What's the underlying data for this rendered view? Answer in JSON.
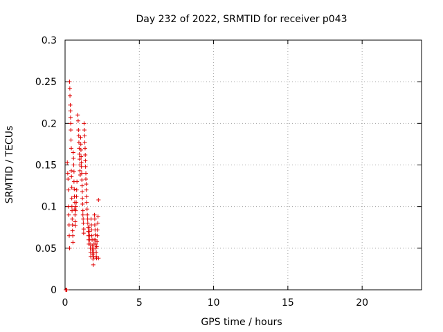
{
  "chart_data": {
    "type": "scatter",
    "title": "Day 232 of 2022, SRMTID for receiver p043",
    "xlabel": "GPS time / hours",
    "ylabel": "SRMTID / TECUs",
    "xlim": [
      0,
      24
    ],
    "ylim": [
      0,
      0.3
    ],
    "xticks": [
      0,
      5,
      10,
      15,
      20
    ],
    "xtick_labels": [
      "0",
      "5",
      "10",
      "15",
      "20"
    ],
    "yticks": [
      0,
      0.05,
      0.1,
      0.15,
      0.2,
      0.25,
      0.3
    ],
    "ytick_labels": [
      "0",
      "0.05",
      "0.1",
      "0.15",
      "0.2",
      "0.25",
      "0.3"
    ],
    "grid": true,
    "marker": "+",
    "series": [
      {
        "name": "p043",
        "color": "#e00000",
        "points": [
          [
            0.05,
            0.0
          ],
          [
            0.1,
            0.0
          ],
          [
            0.12,
            0.0
          ],
          [
            0.15,
            0.153
          ],
          [
            0.18,
            0.14
          ],
          [
            0.2,
            0.133
          ],
          [
            0.22,
            0.12
          ],
          [
            0.23,
            0.1
          ],
          [
            0.25,
            0.09
          ],
          [
            0.27,
            0.078
          ],
          [
            0.28,
            0.065
          ],
          [
            0.3,
            0.05
          ],
          [
            0.3,
            0.25
          ],
          [
            0.32,
            0.242
          ],
          [
            0.33,
            0.233
          ],
          [
            0.35,
            0.222
          ],
          [
            0.36,
            0.215
          ],
          [
            0.37,
            0.207
          ],
          [
            0.38,
            0.2
          ],
          [
            0.39,
            0.192
          ],
          [
            0.4,
            0.18
          ],
          [
            0.42,
            0.17
          ],
          [
            0.42,
            0.143
          ],
          [
            0.43,
            0.136
          ],
          [
            0.45,
            0.123
          ],
          [
            0.45,
            0.11
          ],
          [
            0.46,
            0.1
          ],
          [
            0.47,
            0.095
          ],
          [
            0.48,
            0.085
          ],
          [
            0.5,
            0.078
          ],
          [
            0.5,
            0.071
          ],
          [
            0.52,
            0.065
          ],
          [
            0.53,
            0.057
          ],
          [
            0.55,
            0.165
          ],
          [
            0.57,
            0.158
          ],
          [
            0.58,
            0.15
          ],
          [
            0.6,
            0.142
          ],
          [
            0.6,
            0.13
          ],
          [
            0.62,
            0.121
          ],
          [
            0.63,
            0.112
          ],
          [
            0.65,
            0.105
          ],
          [
            0.65,
            0.097
          ],
          [
            0.67,
            0.09
          ],
          [
            0.68,
            0.082
          ],
          [
            0.7,
            0.077
          ],
          [
            0.72,
            0.095
          ],
          [
            0.73,
            0.1
          ],
          [
            0.75,
            0.105
          ],
          [
            0.77,
            0.112
          ],
          [
            0.78,
            0.12
          ],
          [
            0.8,
            0.13
          ],
          [
            0.85,
            0.21
          ],
          [
            0.88,
            0.203
          ],
          [
            0.9,
            0.192
          ],
          [
            0.92,
            0.185
          ],
          [
            0.93,
            0.177
          ],
          [
            0.95,
            0.17
          ],
          [
            0.96,
            0.163
          ],
          [
            0.98,
            0.157
          ],
          [
            1.0,
            0.15
          ],
          [
            1.0,
            0.143
          ],
          [
            1.02,
            0.138
          ],
          [
            1.05,
            0.183
          ],
          [
            1.06,
            0.175
          ],
          [
            1.07,
            0.168
          ],
          [
            1.08,
            0.16
          ],
          [
            1.1,
            0.153
          ],
          [
            1.1,
            0.148
          ],
          [
            1.12,
            0.14
          ],
          [
            1.13,
            0.132
          ],
          [
            1.15,
            0.125
          ],
          [
            1.16,
            0.118
          ],
          [
            1.17,
            0.11
          ],
          [
            1.18,
            0.103
          ],
          [
            1.2,
            0.095
          ],
          [
            1.2,
            0.09
          ],
          [
            1.22,
            0.085
          ],
          [
            1.23,
            0.08
          ],
          [
            1.25,
            0.073
          ],
          [
            1.25,
            0.068
          ],
          [
            1.28,
            0.2
          ],
          [
            1.3,
            0.192
          ],
          [
            1.32,
            0.185
          ],
          [
            1.33,
            0.177
          ],
          [
            1.35,
            0.17
          ],
          [
            1.36,
            0.162
          ],
          [
            1.37,
            0.155
          ],
          [
            1.38,
            0.148
          ],
          [
            1.4,
            0.14
          ],
          [
            1.4,
            0.133
          ],
          [
            1.42,
            0.127
          ],
          [
            1.43,
            0.12
          ],
          [
            1.45,
            0.112
          ],
          [
            1.46,
            0.105
          ],
          [
            1.48,
            0.097
          ],
          [
            1.5,
            0.09
          ],
          [
            1.52,
            0.085
          ],
          [
            1.53,
            0.08
          ],
          [
            1.55,
            0.075
          ],
          [
            1.56,
            0.07
          ],
          [
            1.57,
            0.065
          ],
          [
            1.58,
            0.06
          ],
          [
            1.6,
            0.055
          ],
          [
            1.62,
            0.075
          ],
          [
            1.63,
            0.07
          ],
          [
            1.65,
            0.065
          ],
          [
            1.66,
            0.06
          ],
          [
            1.68,
            0.055
          ],
          [
            1.7,
            0.05
          ],
          [
            1.72,
            0.045
          ],
          [
            1.73,
            0.04
          ],
          [
            1.75,
            0.085
          ],
          [
            1.77,
            0.078
          ],
          [
            1.78,
            0.072
          ],
          [
            1.8,
            0.065
          ],
          [
            1.82,
            0.06
          ],
          [
            1.83,
            0.053
          ],
          [
            1.85,
            0.048
          ],
          [
            1.86,
            0.043
          ],
          [
            1.88,
            0.037
          ],
          [
            1.9,
            0.03
          ],
          [
            1.9,
            0.05
          ],
          [
            1.92,
            0.045
          ],
          [
            1.93,
            0.04
          ],
          [
            1.95,
            0.055
          ],
          [
            1.96,
            0.06
          ],
          [
            1.98,
            0.09
          ],
          [
            2.0,
            0.085
          ],
          [
            2.0,
            0.078
          ],
          [
            2.02,
            0.072
          ],
          [
            2.03,
            0.066
          ],
          [
            2.05,
            0.06
          ],
          [
            2.07,
            0.055
          ],
          [
            2.08,
            0.05
          ],
          [
            2.1,
            0.045
          ],
          [
            2.1,
            0.04
          ],
          [
            2.12,
            0.038
          ],
          [
            2.13,
            0.052
          ],
          [
            2.15,
            0.058
          ],
          [
            2.17,
            0.065
          ],
          [
            2.18,
            0.072
          ],
          [
            2.2,
            0.08
          ],
          [
            2.22,
            0.088
          ],
          [
            2.25,
            0.108
          ],
          [
            2.25,
            0.038
          ]
        ]
      }
    ]
  }
}
